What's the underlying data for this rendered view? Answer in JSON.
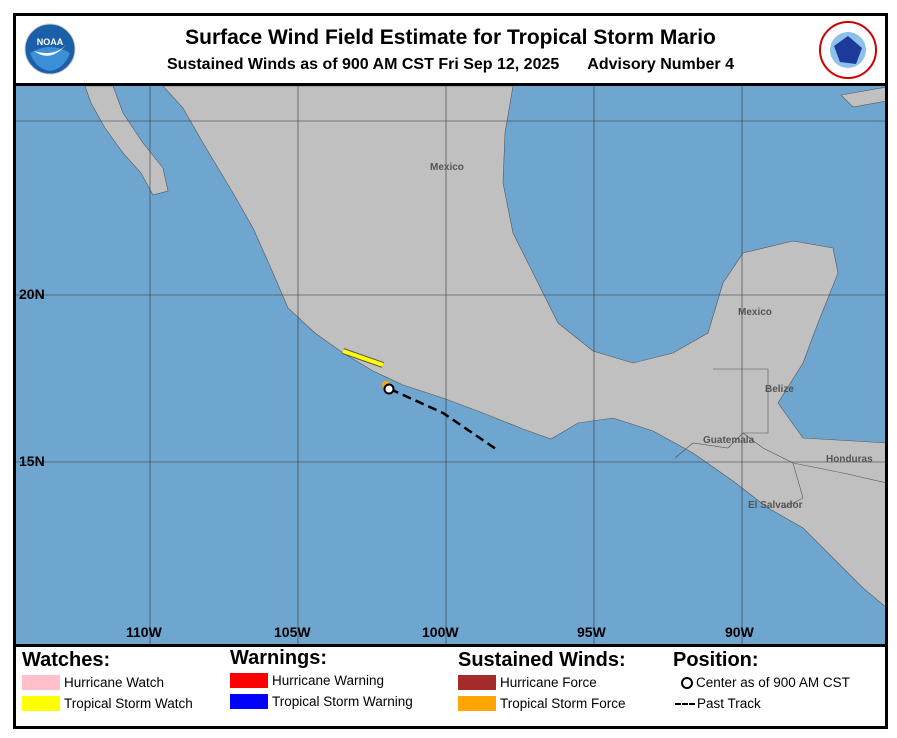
{
  "header": {
    "title": "Surface Wind Field Estimate for Tropical Storm Mario",
    "subtitle": "Sustained Winds as of 900 AM CST Fri Sep 12, 2025",
    "advisory": "Advisory Number 4",
    "logo_left": "NOAA",
    "logo_right": "NATIONAL WEATHER SERVICE"
  },
  "map": {
    "lon_labels": [
      "110W",
      "105W",
      "100W",
      "95W",
      "90W"
    ],
    "lat_labels": [
      "20N",
      "15N"
    ],
    "place_labels": [
      "Mexico",
      "Mexico",
      "Belize",
      "Guatemala",
      "Honduras",
      "El Salvador"
    ],
    "colors": {
      "ocean": "#6fa6cf",
      "land": "#c0c0c0",
      "ts_watch": "#ffff00",
      "ts_force": "#ffa500"
    }
  },
  "legend": {
    "watches": {
      "title": "Watches:",
      "items": [
        {
          "label": "Hurricane Watch",
          "color": "#ffc0cb"
        },
        {
          "label": "Tropical Storm Watch",
          "color": "#ffff00"
        }
      ]
    },
    "warnings": {
      "title": "Warnings:",
      "items": [
        {
          "label": "Hurricane Warning",
          "color": "#ff0000"
        },
        {
          "label": "Tropical Storm Warning",
          "color": "#0000ff"
        }
      ]
    },
    "winds": {
      "title": "Sustained Winds:",
      "items": [
        {
          "label": "Hurricane Force",
          "color": "#a52a2a"
        },
        {
          "label": "Tropical Storm Force",
          "color": "#ffa500"
        }
      ]
    },
    "position": {
      "title": "Position:",
      "items": [
        {
          "label": "Center as of 900 AM CST",
          "icon": "circle"
        },
        {
          "label": "Past Track",
          "icon": "dash"
        }
      ]
    }
  }
}
